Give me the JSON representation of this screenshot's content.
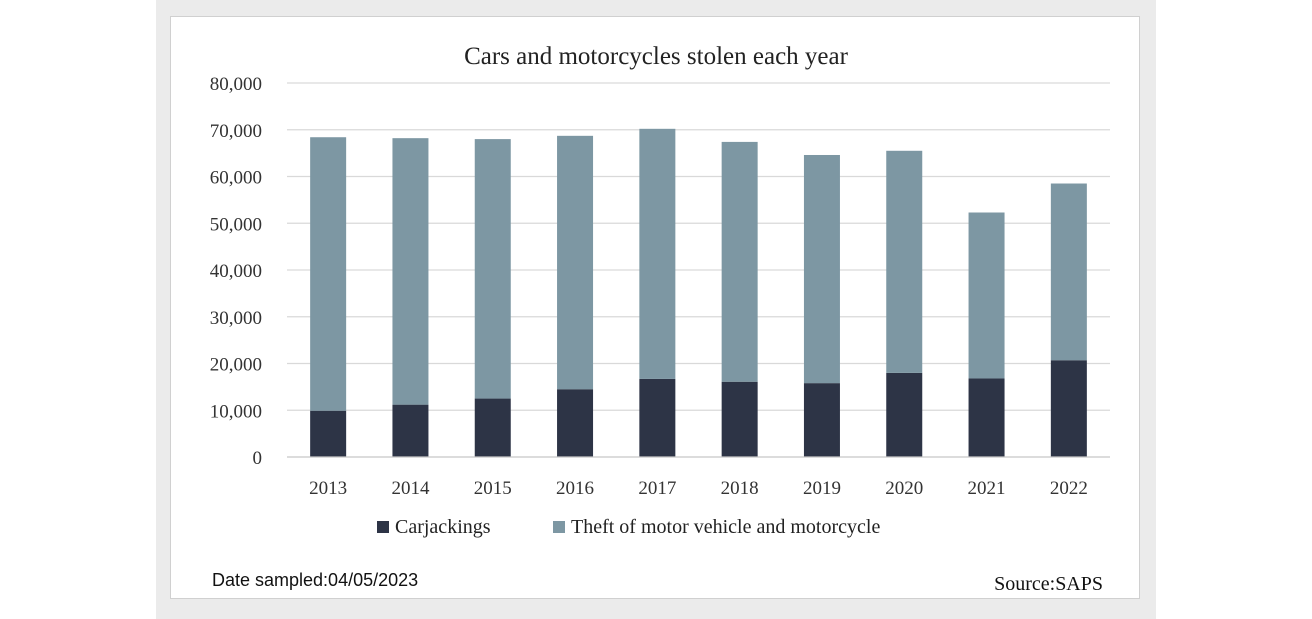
{
  "chart_data": {
    "type": "bar",
    "stacked": true,
    "title": "Cars and motorcycles stolen each year",
    "categories": [
      "2013",
      "2014",
      "2015",
      "2016",
      "2017",
      "2018",
      "2019",
      "2020",
      "2021",
      "2022"
    ],
    "series": [
      {
        "name": "Carjackings",
        "color": "#2d3446",
        "values": [
          9900,
          11200,
          12500,
          14500,
          16700,
          16100,
          15800,
          18000,
          16800,
          20700
        ]
      },
      {
        "name": "Theft of motor vehicle and motorcycle",
        "color": "#7d97a3",
        "values": [
          58500,
          57000,
          55500,
          54200,
          53500,
          51300,
          48800,
          47500,
          35500,
          37800
        ]
      }
    ],
    "totals": [
      68400,
      68200,
      68000,
      68700,
      70200,
      67400,
      64600,
      65500,
      52300,
      58500
    ],
    "ylim": [
      0,
      80000
    ],
    "yticks": [
      0,
      10000,
      20000,
      30000,
      40000,
      50000,
      60000,
      70000,
      80000
    ],
    "ytick_labels": [
      "0",
      "10,000",
      "20,000",
      "30,000",
      "40,000",
      "50,000",
      "60,000",
      "70,000",
      "80,000"
    ],
    "xlabel": "",
    "ylabel": "",
    "grid": true,
    "legend_position": "bottom"
  },
  "footer": {
    "date_sampled": "Date sampled:04/05/2023",
    "source": "Source:SAPS"
  }
}
